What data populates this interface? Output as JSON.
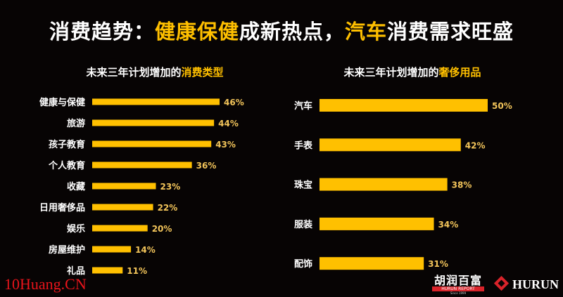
{
  "title": {
    "part1": "消费趋势：",
    "part2": "健康保健",
    "part3": "成新热点，",
    "part4": "汽车",
    "part5": "消费需求旺盛"
  },
  "chart_data": [
    {
      "type": "bar",
      "orientation": "horizontal",
      "title_plain": "未来三年计划增加的",
      "title_highlight": "消费类型",
      "categories": [
        "健康与保健",
        "旅游",
        "孩子教育",
        "个人教育",
        "收藏",
        "日用奢侈品",
        "娱乐",
        "房屋维护",
        "礼品"
      ],
      "values": [
        46,
        44,
        43,
        36,
        23,
        22,
        20,
        14,
        11
      ],
      "unit": "%",
      "color": "#ffc000"
    },
    {
      "type": "bar",
      "orientation": "horizontal",
      "title_plain": "未来三年计划增加的",
      "title_highlight": "奢侈用品",
      "categories": [
        "汽车",
        "手表",
        "珠宝",
        "服装",
        "配饰"
      ],
      "values": [
        50,
        42,
        38,
        34,
        31
      ],
      "unit": "%",
      "color": "#ffc000"
    }
  ],
  "watermark": "10Huang.CN",
  "logos": {
    "hurun_cn": "胡润百富",
    "hurun_report": "HURUN REPORT",
    "since": "Since 1999",
    "hurun": "HURUN"
  },
  "colors": {
    "accent": "#ffc000",
    "background": "#070404",
    "value_label": "#f2c45a",
    "brand_red": "#d9232a"
  }
}
